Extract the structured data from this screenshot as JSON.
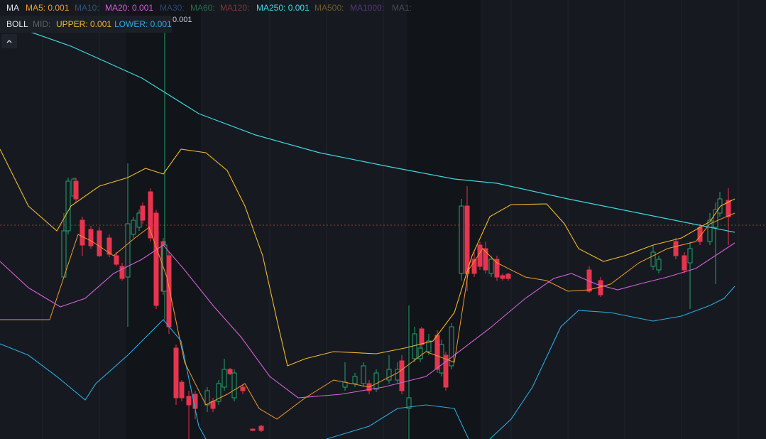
{
  "legend": {
    "ma": {
      "label": "MA",
      "items": [
        "MA5: 0.001",
        "MA10:",
        "MA20: 0.001",
        "MA30:",
        "MA60:",
        "MA120:",
        "MA250: 0.001",
        "MA500:",
        "MA1000:",
        "MA1:"
      ]
    },
    "boll": {
      "label": "BOLL",
      "items": [
        "MID:",
        "UPPER: 0.001",
        "LOWER: 0.001"
      ]
    }
  },
  "price_label": "0.001"
}
